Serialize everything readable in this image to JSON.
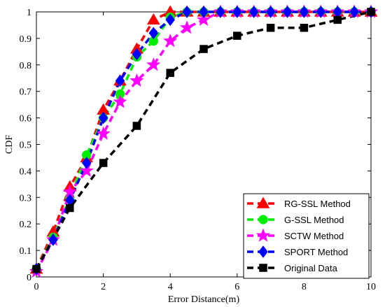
{
  "chart_data": {
    "type": "line",
    "xlabel": "Error Distance(m)",
    "ylabel": "CDF",
    "xlim": [
      0,
      10
    ],
    "ylim": [
      0,
      1
    ],
    "xticks": [
      0,
      2,
      4,
      6,
      8,
      10
    ],
    "yticks": [
      0,
      0.1,
      0.2,
      0.3,
      0.4,
      0.5,
      0.6,
      0.7,
      0.8,
      0.9,
      1
    ],
    "xtick_labels": [
      "0",
      "2",
      "4",
      "6",
      "8",
      "10"
    ],
    "ytick_labels": [
      "0",
      "0.1",
      "0.2",
      "0.3",
      "0.4",
      "0.5",
      "0.6",
      "0.7",
      "0.8",
      "0.9",
      "1"
    ],
    "grid": false,
    "legend_position": "bottom-right",
    "series": [
      {
        "name": "RG-SSL Method",
        "color": "#ff0000",
        "marker": "triangle",
        "x": [
          0,
          0.5,
          1,
          1.5,
          2,
          2.5,
          3,
          3.5,
          4,
          4.5,
          5,
          5.5,
          6,
          6.5,
          7,
          7.5,
          8,
          8.5,
          9,
          9.5,
          10
        ],
        "y": [
          0.03,
          0.17,
          0.34,
          0.45,
          0.63,
          0.74,
          0.86,
          0.97,
          1,
          1,
          1,
          1,
          1,
          1,
          1,
          1,
          1,
          1,
          1,
          1,
          1
        ]
      },
      {
        "name": "G-SSL Method",
        "color": "#00ee00",
        "marker": "circle",
        "x": [
          0,
          0.5,
          1,
          1.5,
          2,
          2.5,
          3,
          3.5,
          4,
          4.5,
          5,
          5.5,
          6,
          6.5,
          7,
          7.5,
          8,
          8.5,
          9,
          9.5,
          10
        ],
        "y": [
          0.03,
          0.15,
          0.3,
          0.46,
          0.6,
          0.69,
          0.83,
          0.89,
          0.98,
          1,
          1,
          1,
          1,
          1,
          1,
          1,
          1,
          1,
          1,
          1,
          1
        ]
      },
      {
        "name": "SCTW Method",
        "color": "#ff00ff",
        "marker": "star",
        "x": [
          0,
          0.5,
          1,
          1.5,
          2,
          2.5,
          3,
          3.5,
          4,
          4.5,
          5,
          5.5,
          6,
          6.5,
          7,
          7.5,
          8,
          8.5,
          9,
          9.5,
          10
        ],
        "y": [
          0.02,
          0.14,
          0.32,
          0.4,
          0.54,
          0.66,
          0.74,
          0.8,
          0.89,
          0.94,
          0.97,
          1,
          1,
          1,
          1,
          1,
          1,
          1,
          1,
          1,
          1
        ]
      },
      {
        "name": "SPORT Method",
        "color": "#0000ff",
        "marker": "diamond",
        "x": [
          0,
          0.5,
          1,
          1.5,
          2,
          2.5,
          3,
          3.5,
          4,
          4.5,
          5,
          5.5,
          6,
          6.5,
          7,
          7.5,
          8,
          8.5,
          9,
          9.5,
          10
        ],
        "y": [
          0.03,
          0.14,
          0.29,
          0.43,
          0.6,
          0.74,
          0.84,
          0.92,
          0.97,
          1,
          1,
          1,
          1,
          1,
          1,
          1,
          1,
          1,
          1,
          1,
          1
        ]
      },
      {
        "name": "Original Data",
        "color": "#000000",
        "marker": "square",
        "x": [
          0,
          1,
          2,
          3,
          4,
          5,
          6,
          7,
          8,
          9,
          10
        ],
        "y": [
          0.03,
          0.26,
          0.43,
          0.57,
          0.77,
          0.86,
          0.91,
          0.94,
          0.94,
          0.97,
          1
        ]
      }
    ]
  }
}
